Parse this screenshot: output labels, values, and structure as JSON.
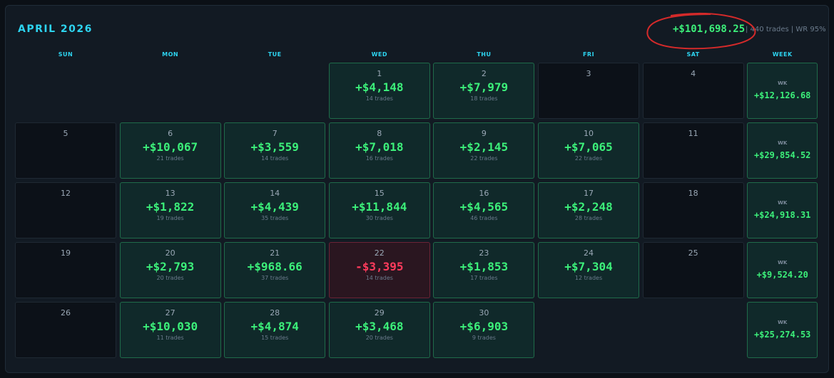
{
  "header": {
    "title": "APRIL 2026",
    "total": "+$101,698.25",
    "stats": "| 440 trades | WR 95%"
  },
  "weekdays": [
    "SUN",
    "MON",
    "TUE",
    "WED",
    "THU",
    "FRI",
    "SAT",
    "WEEK"
  ],
  "weeks": [
    {
      "days": [
        null,
        null,
        null,
        {
          "day": 1,
          "pnl": "+$4,148",
          "trades": "14 trades"
        },
        {
          "day": 2,
          "pnl": "+$7,979",
          "trades": "18 trades"
        },
        {
          "day": 3
        },
        {
          "day": 4
        }
      ],
      "label": "WK",
      "total": "+$12,126.68"
    },
    {
      "days": [
        {
          "day": 5
        },
        {
          "day": 6,
          "pnl": "+$10,067",
          "trades": "21 trades"
        },
        {
          "day": 7,
          "pnl": "+$3,559",
          "trades": "14 trades"
        },
        {
          "day": 8,
          "pnl": "+$7,018",
          "trades": "16 trades"
        },
        {
          "day": 9,
          "pnl": "+$2,145",
          "trades": "22 trades"
        },
        {
          "day": 10,
          "pnl": "+$7,065",
          "trades": "22 trades"
        },
        {
          "day": 11
        }
      ],
      "label": "WK",
      "total": "+$29,854.52"
    },
    {
      "days": [
        {
          "day": 12
        },
        {
          "day": 13,
          "pnl": "+$1,822",
          "trades": "19 trades"
        },
        {
          "day": 14,
          "pnl": "+$4,439",
          "trades": "35 trades"
        },
        {
          "day": 15,
          "pnl": "+$11,844",
          "trades": "30 trades"
        },
        {
          "day": 16,
          "pnl": "+$4,565",
          "trades": "46 trades"
        },
        {
          "day": 17,
          "pnl": "+$2,248",
          "trades": "28 trades"
        },
        {
          "day": 18
        }
      ],
      "label": "WK",
      "total": "+$24,918.31"
    },
    {
      "days": [
        {
          "day": 19
        },
        {
          "day": 20,
          "pnl": "+$2,793",
          "trades": "20 trades"
        },
        {
          "day": 21,
          "pnl": "+$968.66",
          "trades": "37 trades"
        },
        {
          "day": 22,
          "pnl": "-$3,395",
          "trades": "14 trades"
        },
        {
          "day": 23,
          "pnl": "+$1,853",
          "trades": "17 trades"
        },
        {
          "day": 24,
          "pnl": "+$7,304",
          "trades": "12 trades"
        },
        {
          "day": 25
        }
      ],
      "label": "WK",
      "total": "+$9,524.20"
    },
    {
      "days": [
        {
          "day": 26
        },
        {
          "day": 27,
          "pnl": "+$10,030",
          "trades": "11 trades"
        },
        {
          "day": 28,
          "pnl": "+$4,874",
          "trades": "15 trades"
        },
        {
          "day": 29,
          "pnl": "+$3,468",
          "trades": "20 trades"
        },
        {
          "day": 30,
          "pnl": "+$6,903",
          "trades": "9 trades"
        },
        null,
        null
      ],
      "label": "WK",
      "total": "+$25,274.53"
    }
  ]
}
